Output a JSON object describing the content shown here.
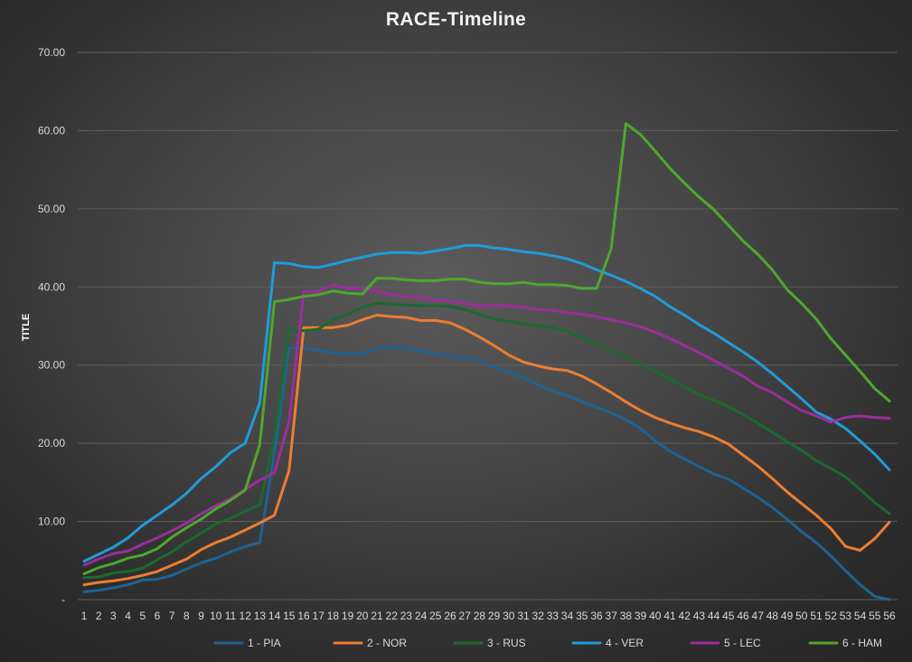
{
  "chart_data": {
    "type": "line",
    "title": "RACE-Timeline",
    "xlabel": "",
    "ylabel": "TITLE",
    "ylim": [
      0,
      70
    ],
    "yticks": [
      {
        "value": 0,
        "label": "-"
      },
      {
        "value": 10,
        "label": "10.00"
      },
      {
        "value": 20,
        "label": "20.00"
      },
      {
        "value": 30,
        "label": "30.00"
      },
      {
        "value": 40,
        "label": "40.00"
      },
      {
        "value": 50,
        "label": "50.00"
      },
      {
        "value": 60,
        "label": "60.00"
      },
      {
        "value": 70,
        "label": "70.00"
      }
    ],
    "grid": true,
    "legend_position": "bottom",
    "x": [
      1,
      2,
      3,
      4,
      5,
      6,
      7,
      8,
      9,
      10,
      11,
      12,
      13,
      14,
      15,
      16,
      17,
      18,
      19,
      20,
      21,
      22,
      23,
      24,
      25,
      26,
      27,
      28,
      29,
      30,
      31,
      32,
      33,
      34,
      35,
      36,
      37,
      38,
      39,
      40,
      41,
      42,
      43,
      44,
      45,
      46,
      47,
      48,
      49,
      50,
      51,
      52,
      53,
      54,
      55,
      56
    ],
    "series": [
      {
        "name": "1 - PIA",
        "color": "#1f6391",
        "values": [
          1.0,
          1.2,
          1.5,
          1.9,
          2.5,
          2.6,
          3.1,
          3.9,
          4.7,
          5.3,
          6.1,
          6.8,
          7.3,
          18.8,
          32.2,
          32.2,
          31.9,
          31.6,
          31.5,
          31.5,
          32.1,
          32.3,
          32.2,
          31.8,
          31.5,
          31.2,
          30.9,
          30.6,
          29.7,
          29.1,
          28.4,
          27.5,
          26.7,
          26.1,
          25.3,
          24.6,
          23.9,
          23.0,
          21.9,
          20.3,
          19.0,
          18.0,
          17.0,
          16.1,
          15.4,
          14.3,
          13.1,
          11.8,
          10.3,
          8.7,
          7.3,
          5.6,
          3.7,
          1.9,
          0.4,
          0.0
        ]
      },
      {
        "name": "2 - NOR",
        "color": "#ed7d31",
        "values": [
          1.9,
          2.2,
          2.4,
          2.7,
          3.1,
          3.6,
          4.4,
          5.2,
          6.4,
          7.3,
          8.0,
          8.9,
          9.8,
          10.8,
          16.5,
          34.8,
          34.8,
          34.8,
          35.1,
          35.8,
          36.4,
          36.2,
          36.1,
          35.7,
          35.7,
          35.4,
          34.6,
          33.6,
          32.5,
          31.3,
          30.4,
          29.9,
          29.5,
          29.3,
          28.6,
          27.6,
          26.5,
          25.3,
          24.2,
          23.3,
          22.6,
          22.0,
          21.5,
          20.8,
          19.9,
          18.5,
          17.1,
          15.5,
          13.8,
          12.3,
          10.8,
          9.1,
          6.8,
          6.3,
          7.8,
          9.9
        ]
      },
      {
        "name": "3 - RUS",
        "color": "#1b6a2e",
        "values": [
          2.8,
          2.9,
          3.4,
          3.6,
          4.0,
          5.1,
          6.1,
          7.4,
          8.5,
          9.7,
          10.4,
          11.3,
          12.1,
          20.8,
          34.6,
          34.4,
          34.6,
          35.8,
          36.5,
          37.4,
          37.9,
          37.8,
          37.7,
          37.6,
          37.6,
          37.5,
          37.1,
          36.5,
          35.9,
          35.6,
          35.3,
          35.0,
          34.8,
          34.3,
          33.5,
          32.7,
          31.8,
          31.1,
          30.2,
          29.2,
          28.3,
          27.2,
          26.2,
          25.5,
          24.7,
          23.7,
          22.6,
          21.4,
          20.2,
          19.1,
          17.8,
          16.8,
          15.7,
          14.1,
          12.4,
          11.0
        ]
      },
      {
        "name": "4 - VER",
        "color": "#219bd8",
        "values": [
          4.9,
          5.8,
          6.7,
          7.9,
          9.5,
          10.8,
          12.1,
          13.6,
          15.5,
          17.0,
          18.8,
          20.0,
          25.2,
          43.1,
          43.0,
          42.6,
          42.5,
          42.9,
          43.4,
          43.8,
          44.2,
          44.4,
          44.4,
          44.3,
          44.6,
          44.9,
          45.3,
          45.3,
          45.0,
          44.8,
          44.5,
          44.3,
          44.0,
          43.6,
          43.0,
          42.2,
          41.5,
          40.7,
          39.8,
          38.8,
          37.5,
          36.4,
          35.2,
          34.1,
          32.9,
          31.7,
          30.4,
          28.9,
          27.3,
          25.7,
          24.0,
          23.1,
          21.9,
          20.3,
          18.6,
          16.6
        ]
      },
      {
        "name": "5 - LEC",
        "color": "#9b2e9b",
        "values": [
          4.4,
          5.2,
          5.9,
          6.2,
          7.1,
          7.9,
          8.8,
          9.8,
          11.0,
          12.0,
          12.9,
          14.1,
          15.3,
          16.2,
          22.8,
          39.4,
          39.4,
          40.3,
          39.8,
          39.8,
          39.5,
          39.0,
          38.8,
          38.7,
          38.3,
          38.2,
          37.9,
          37.6,
          37.6,
          37.6,
          37.4,
          37.1,
          37.0,
          36.7,
          36.5,
          36.2,
          35.8,
          35.4,
          34.9,
          34.2,
          33.4,
          32.5,
          31.6,
          30.6,
          29.6,
          28.6,
          27.3,
          26.5,
          25.3,
          24.2,
          23.5,
          22.7,
          23.3,
          23.5,
          23.3,
          23.2
        ]
      },
      {
        "name": "6 - HAM",
        "color": "#4ea72e",
        "values": [
          3.3,
          4.1,
          4.6,
          5.3,
          5.7,
          6.5,
          8.0,
          9.2,
          10.3,
          11.6,
          12.7,
          14.0,
          19.8,
          38.1,
          38.4,
          38.8,
          39.0,
          39.5,
          39.2,
          39.1,
          41.1,
          41.1,
          40.9,
          40.8,
          40.8,
          41.0,
          41.0,
          40.6,
          40.4,
          40.4,
          40.6,
          40.3,
          40.3,
          40.2,
          39.8,
          39.8,
          44.9,
          60.9,
          59.5,
          57.4,
          55.2,
          53.3,
          51.5,
          49.9,
          47.9,
          45.9,
          44.2,
          42.2,
          39.7,
          37.9,
          35.9,
          33.4,
          31.3,
          29.2,
          27.0,
          25.4
        ]
      }
    ]
  }
}
